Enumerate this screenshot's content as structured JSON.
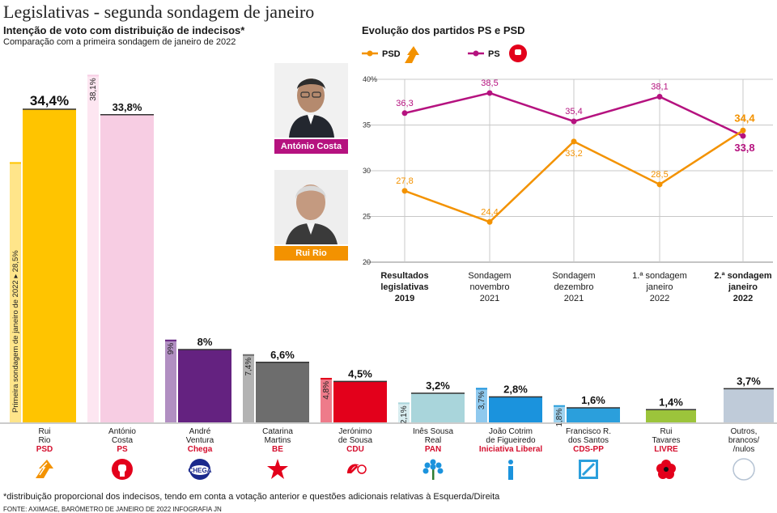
{
  "title": "Legislativas - segunda sondagem de janeiro",
  "bar_section": {
    "subtitle": "Intenção de voto com distribuição de indecisos*",
    "subsubtitle": "Comparação com a primeira sondagem de janeiro de 2022",
    "prev_axis_label": "Primeira sondagem de janeiro de 2022 ▸ 28,5%"
  },
  "line_section": {
    "title": "Evolução dos partidos PS e PSD",
    "legend": [
      "PSD",
      "PS"
    ]
  },
  "photos": {
    "costa_caption": "António Costa",
    "rio_caption": "Rui Rio"
  },
  "candidates": [
    {
      "name1": "Rui",
      "name2": "Rio",
      "party": "PSD",
      "logo": "psd-arrow-icon"
    },
    {
      "name1": "António",
      "name2": "Costa",
      "party": "PS",
      "logo": "ps-fist-icon"
    },
    {
      "name1": "André",
      "name2": "Ventura",
      "party": "Chega",
      "logo": "chega-icon"
    },
    {
      "name1": "Catarina",
      "name2": "Martins",
      "party": "BE",
      "logo": "be-star-icon"
    },
    {
      "name1": "Jerónimo",
      "name2": "de Sousa",
      "party": "CDU",
      "logo": "cdu-hammer-sickle-icon"
    },
    {
      "name1": "Inês Sousa",
      "name2": "Real",
      "party": "PAN",
      "logo": "pan-tree-icon"
    },
    {
      "name1": "João Cotrim",
      "name2": "de Figueiredo",
      "party": "Iniciativa Liberal",
      "logo": "il-i-icon"
    },
    {
      "name1": "Francisco R.",
      "name2": "dos Santos",
      "party": "CDS-PP",
      "logo": "cds-icon"
    },
    {
      "name1": "Rui",
      "name2": "Tavares",
      "party": "LIVRE",
      "logo": "livre-poppy-icon"
    },
    {
      "name1": "Outros,",
      "name2": "brancos/",
      "name3": "/nulos",
      "party": "",
      "logo": "circle-icon"
    }
  ],
  "chart_data": [
    {
      "type": "bar",
      "title": "Intenção de voto com distribuição de indecisos*",
      "categories": [
        "Rui Rio",
        "António Costa",
        "André Ventura",
        "Catarina Martins",
        "Jerónimo de Sousa",
        "Inês Sousa Real",
        "João Cotrim de Figueiredo",
        "Francisco R. dos Santos",
        "Rui Tavares",
        "Outros, brancos/ /nulos"
      ],
      "series": [
        {
          "name": "Segunda sondagem de janeiro de 2022",
          "values": [
            34.4,
            33.8,
            8,
            6.6,
            4.5,
            3.2,
            2.8,
            1.6,
            1.4,
            3.7
          ],
          "labels": [
            "34,4%",
            "33,8%",
            "8%",
            "6,6%",
            "4,5%",
            "3,2%",
            "2,8%",
            "1,6%",
            "1,4%",
            "3,7%"
          ]
        },
        {
          "name": "Primeira sondagem de janeiro de 2022",
          "values": [
            28.5,
            38.1,
            9,
            7.4,
            4.8,
            2.1,
            3.7,
            1.8,
            null,
            null
          ],
          "labels": [
            "28,5%",
            "38,1%",
            "9%",
            "7,4%",
            "4,8%",
            "2,1%",
            "3,7%",
            "1,8%",
            "",
            ""
          ]
        }
      ],
      "colors": [
        "#ffc400",
        "#f7cde3",
        "#642280",
        "#6d6d6d",
        "#e3001b",
        "#a9d5db",
        "#1b93dd",
        "#2b9fdc",
        "#9cc43b",
        "#bfcbd9"
      ],
      "prev_colors": [
        "#ffe58a",
        "#fde6f1",
        "#b18fc2",
        "#b3b3b3",
        "#ee7b8a",
        "#d7ecef",
        "#8fc9ee",
        "#9fd2ee",
        "",
        ""
      ],
      "ylim": [
        0,
        40
      ]
    },
    {
      "type": "line",
      "title": "Evolução dos partidos PS e PSD",
      "x": [
        "Resultados legislativas 2019",
        "Sondagem novembro 2021",
        "Sondagem dezembro 2021",
        "1.ª sondagem janeiro 2022",
        "2.ª sondagem janeiro 2022"
      ],
      "x_ticks": [
        [
          "Resultados",
          "legislativas",
          "2019"
        ],
        [
          "Sondagem",
          "novembro",
          "2021"
        ],
        [
          "Sondagem",
          "dezembro",
          "2021"
        ],
        [
          "1.ª sondagem",
          "janeiro",
          "2022"
        ],
        [
          "2.ª sondagem",
          "janeiro",
          "2022"
        ]
      ],
      "series": [
        {
          "name": "PS",
          "color": "#b5127f",
          "values": [
            36.3,
            38.5,
            35.4,
            38.1,
            33.8
          ],
          "labels": [
            "36,3",
            "38,5",
            "35,4",
            "38,1",
            "33,8"
          ]
        },
        {
          "name": "PSD",
          "color": "#f39200",
          "values": [
            27.8,
            24.4,
            33.2,
            28.5,
            34.4
          ],
          "labels": [
            "27,8",
            "24,4",
            "33,2",
            "28,5",
            "34,4"
          ]
        }
      ],
      "y_ticks": [
        "40%",
        "35",
        "30",
        "25",
        "20"
      ],
      "ylim": [
        20,
        40
      ]
    }
  ],
  "footnote": "*distribuição proporcional dos indecisos, tendo em conta a votação anterior e questões adicionais relativas à Esquerda/Direita",
  "source": "FONTE: AXIMAGE, BARÓMETRO DE JANEIRO DE 2022    INFOGRAFIA JN"
}
